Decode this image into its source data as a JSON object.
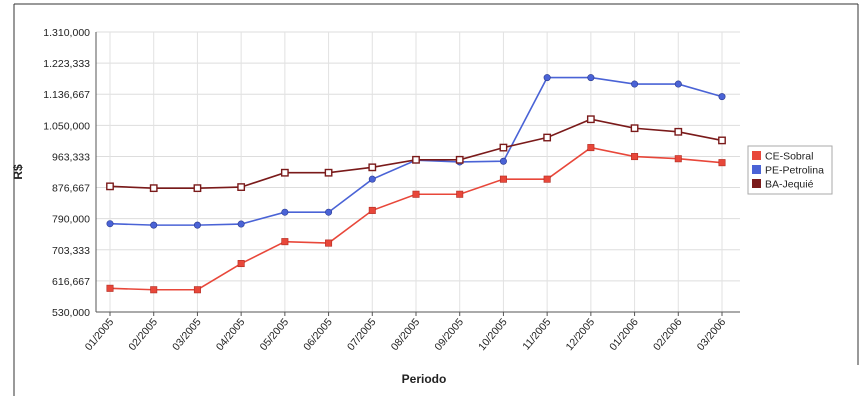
{
  "chart_data": {
    "type": "line",
    "title": "",
    "xlabel": "Periodo",
    "ylabel": "R$",
    "categories": [
      "01/2005",
      "02/2005",
      "03/2005",
      "04/2005",
      "05/2005",
      "06/2005",
      "07/2005",
      "08/2005",
      "09/2005",
      "10/2005",
      "11/2005",
      "12/2005",
      "01/2006",
      "02/2006",
      "03/2006"
    ],
    "yticks": [
      "530,000",
      "616,667",
      "703,333",
      "790,000",
      "876,667",
      "963,333",
      "1.050,000",
      "1.136,667",
      "1.223,333",
      "1.310,000"
    ],
    "ylim": [
      530,
      1310
    ],
    "grid": true,
    "legend_position": "right",
    "series": [
      {
        "name": "CE-Sobral",
        "color": "#e8473a",
        "values": [
          596,
          592,
          592,
          665,
          726,
          722,
          813,
          858,
          858,
          900,
          900,
          988,
          963,
          957,
          946
        ]
      },
      {
        "name": "PE-Petrolina",
        "color": "#4a63d6",
        "values": [
          776,
          772,
          772,
          775,
          808,
          808,
          900,
          953,
          948,
          950,
          1183,
          1183,
          1165,
          1165,
          1130
        ]
      },
      {
        "name": "BA-Jequié",
        "color": "#7a1a1a",
        "values": [
          880,
          875,
          875,
          878,
          918,
          918,
          933,
          954,
          954,
          988,
          1016,
          1067,
          1042,
          1032,
          1008
        ]
      }
    ]
  }
}
